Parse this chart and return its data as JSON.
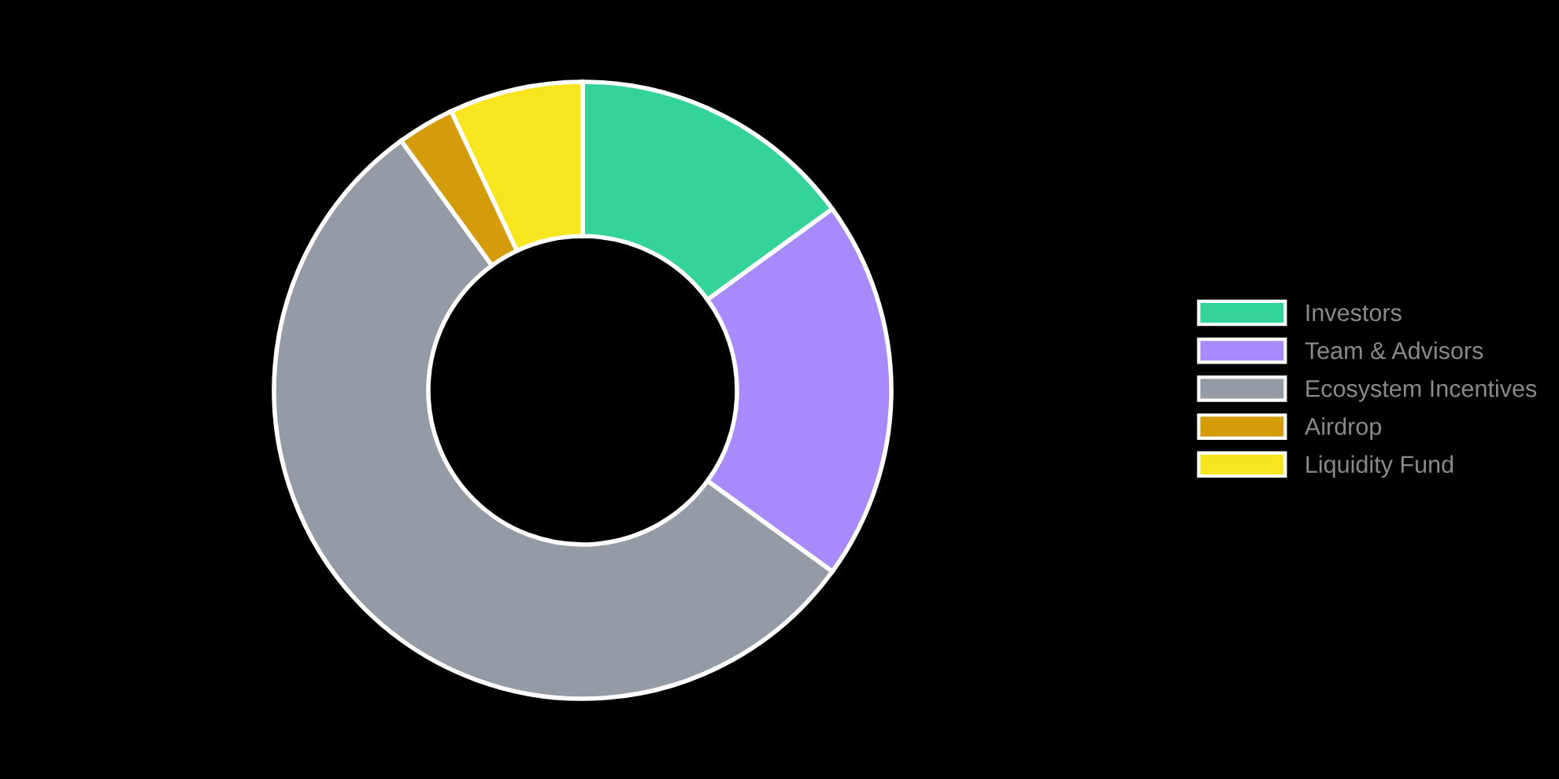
{
  "chart_data": {
    "type": "donut",
    "categories": [
      "Investors",
      "Team & Advisors",
      "Ecosystem Incentives",
      "Airdrop",
      "Liquidity Fund"
    ],
    "values": [
      15,
      20,
      55,
      3,
      7
    ],
    "colors": [
      "#34d399",
      "#a78bfa",
      "#949ba4",
      "#d49b0b",
      "#f7e51f"
    ],
    "legend": "right"
  }
}
